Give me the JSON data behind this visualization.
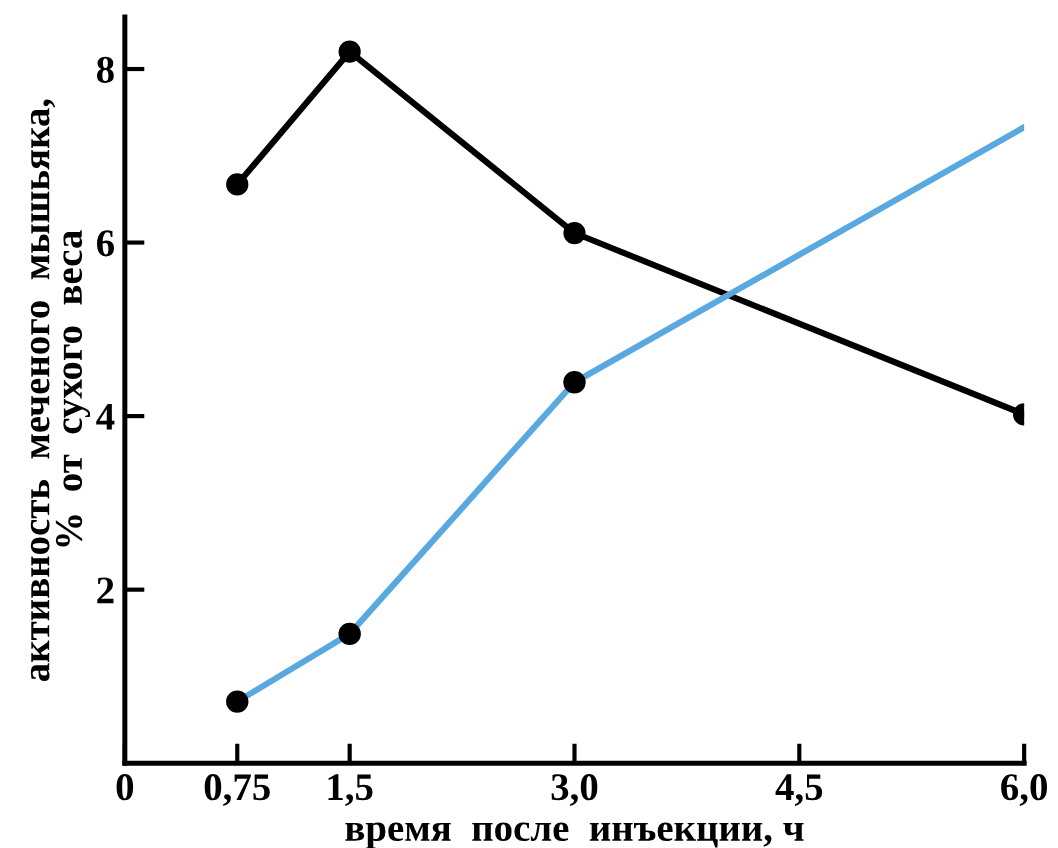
{
  "chart_data": {
    "type": "line",
    "xlabel": "время  после  инъекции, ч",
    "ylabel": "активность  меченого  мышьяка,\n%  от  сухого  веса",
    "xlim": [
      0,
      6.0
    ],
    "ylim": [
      0,
      8.6
    ],
    "xticks": [
      {
        "value": 0,
        "label": "0"
      },
      {
        "value": 0.75,
        "label": "0,75"
      },
      {
        "value": 1.5,
        "label": "1,5"
      },
      {
        "value": 3.0,
        "label": "3,0"
      },
      {
        "value": 4.5,
        "label": "4,5"
      },
      {
        "value": 6.0,
        "label": "6,0"
      }
    ],
    "yticks": [
      2,
      4,
      6,
      8
    ],
    "grid": false,
    "legend": false,
    "series": [
      {
        "color": "#000000",
        "marker": "circle",
        "x": [
          0.75,
          1.5,
          3.0,
          6.0
        ],
        "values": [
          6.67,
          8.2,
          6.11,
          4.02
        ]
      },
      {
        "color": "#5aa8e0",
        "marker": "none",
        "x": [
          0.75,
          1.5,
          3.0,
          6.0
        ],
        "values": [
          0.71,
          1.49,
          4.39,
          7.33
        ]
      },
      {
        "type": "scatter",
        "color": "#000000",
        "marker": "circle",
        "x": [
          0.75,
          1.5,
          3.0
        ],
        "values": [
          0.71,
          1.49,
          4.39
        ]
      }
    ]
  }
}
